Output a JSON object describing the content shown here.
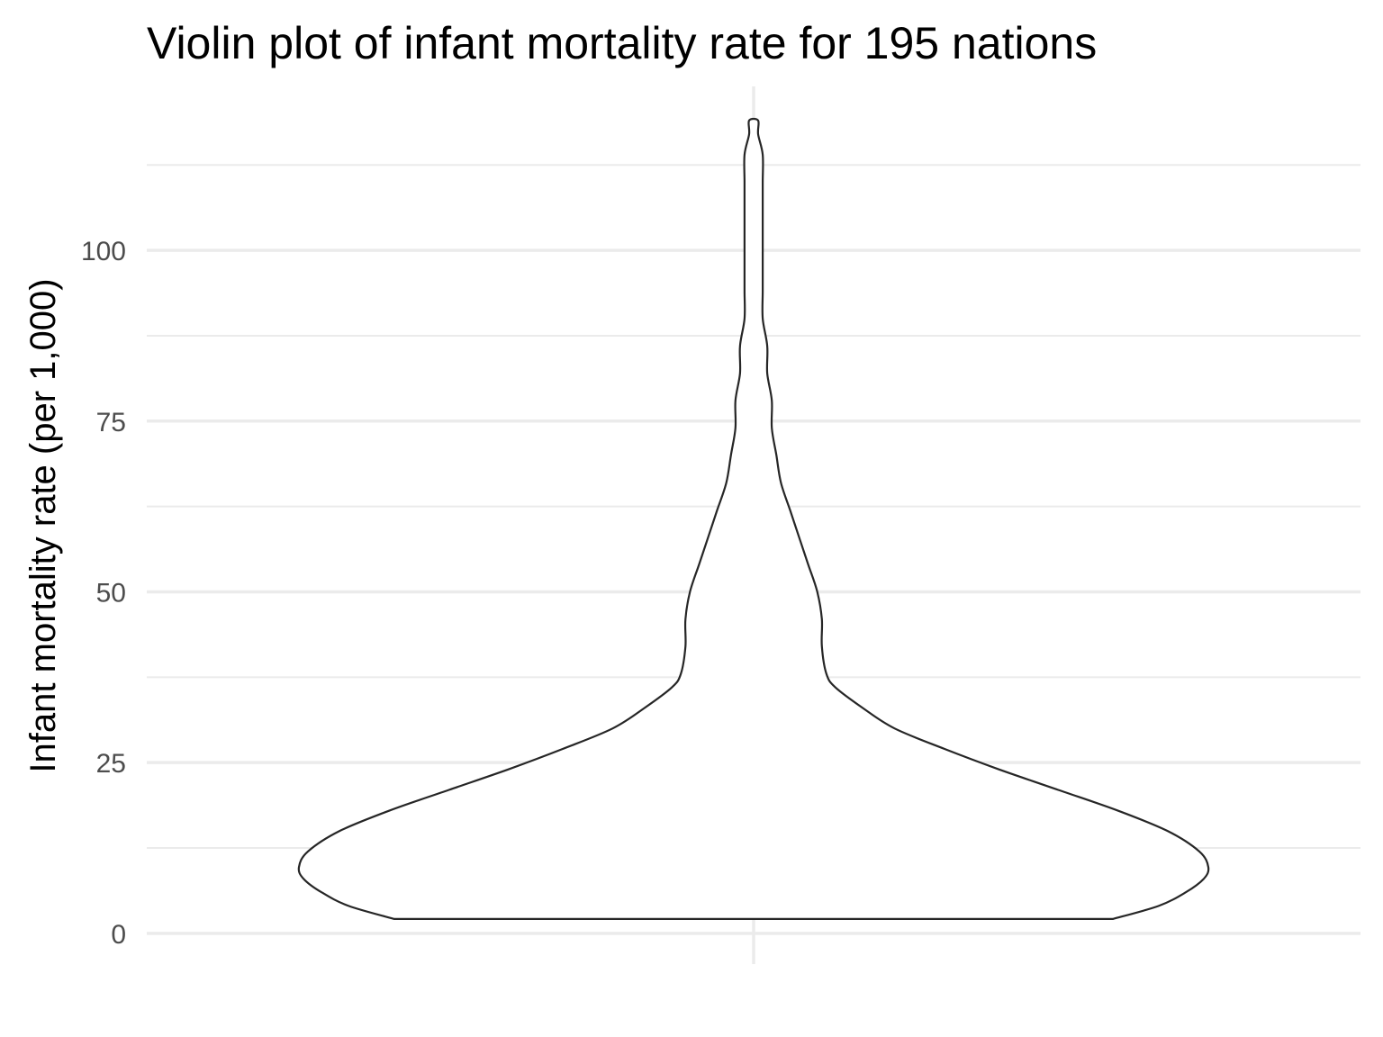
{
  "chart_data": {
    "type": "violin",
    "title": "Violin plot of infant mortality rate for 195 nations",
    "xlabel": "",
    "ylabel": "Infant mortality rate (per 1,000)",
    "ylim": [
      -4.5,
      124
    ],
    "yticks": [
      0,
      25,
      50,
      75,
      100
    ],
    "yticks_labels": [
      "0",
      "25",
      "50",
      "75",
      "100"
    ],
    "y_minor_grid": [
      12.5,
      37.5,
      62.5,
      87.5,
      112.5
    ],
    "grid": true,
    "legend": "none",
    "categories": [
      ""
    ],
    "series": [
      {
        "min": 2.1,
        "max": 119.0,
        "max_density_at": 9.7,
        "density_profile": {
          "y": [
            2.1,
            4.0,
            6.0,
            8.0,
            9.7,
            12.0,
            15.0,
            18.0,
            21.0,
            24.0,
            27.0,
            30.0,
            33.0,
            36.0,
            38.0,
            42.0,
            46.0,
            50.0,
            54.0,
            58.0,
            62.0,
            66.0,
            70.0,
            74.0,
            78.0,
            82.0,
            86.0,
            90.0,
            94.0,
            98.0,
            102.0,
            106.0,
            110.0,
            114.0,
            117.0,
            119.0
          ],
          "relative_width": [
            0.79,
            0.89,
            0.95,
            0.99,
            1.0,
            0.98,
            0.91,
            0.8,
            0.67,
            0.54,
            0.42,
            0.31,
            0.24,
            0.18,
            0.16,
            0.15,
            0.15,
            0.14,
            0.12,
            0.1,
            0.08,
            0.06,
            0.05,
            0.04,
            0.04,
            0.03,
            0.03,
            0.02,
            0.02,
            0.02,
            0.02,
            0.02,
            0.02,
            0.02,
            0.01,
            0.01
          ]
        }
      }
    ],
    "colors": {
      "outline": "#262626",
      "fill": "#ffffff",
      "grid_major": "#ebebeb",
      "grid_minor": "#ebebeb",
      "tick_text": "#4d4d4d"
    }
  }
}
